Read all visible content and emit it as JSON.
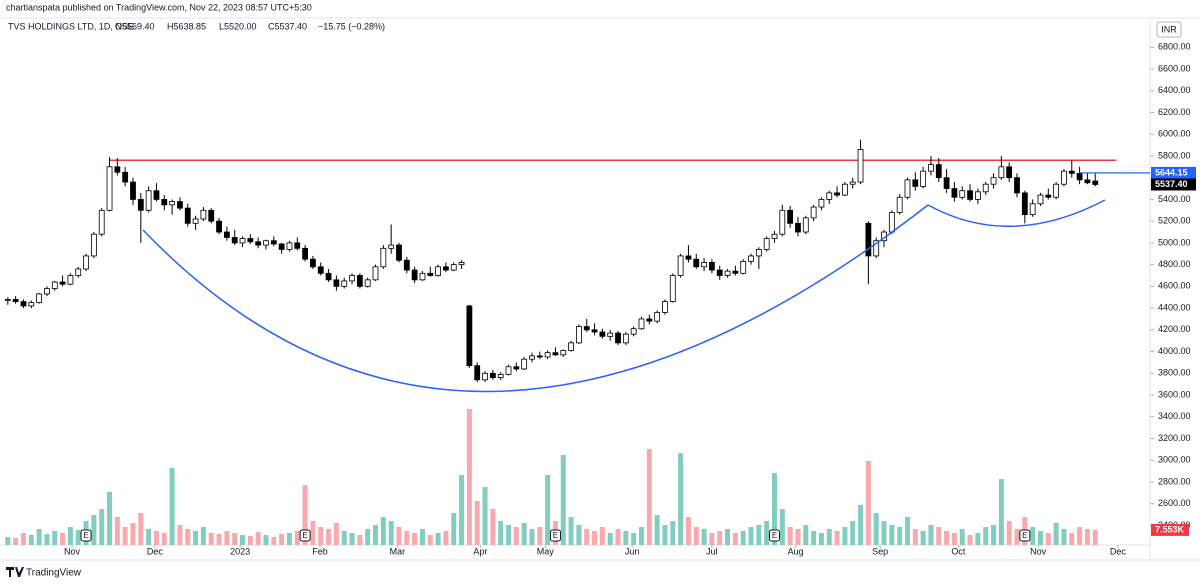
{
  "header": "chartianspata published on TradingView.com, Nov 22, 2023 08:57 UTC+5:30",
  "footer": "TradingView",
  "chart_data": {
    "type": "candlestick",
    "legend": {
      "symbol": "TVS HOLDINGS LTD, 1D, NSE",
      "open": "O5569.40",
      "high": "H5638.85",
      "low": "L5520.00",
      "close": "C5537.40",
      "change": "−15.75 (−0.28%)"
    },
    "currency": "INR",
    "up_color": "#ffffff",
    "down_color": "#000000",
    "wick_color": "#000000",
    "xlim": [
      -1,
      146
    ],
    "xticks": [
      {
        "value": 8.2,
        "label": "Nov"
      },
      {
        "value": 18.8,
        "label": "Dec"
      },
      {
        "value": 29.7,
        "label": "2023"
      },
      {
        "value": 39.9,
        "label": "Feb"
      },
      {
        "value": 49.8,
        "label": "Mar"
      },
      {
        "value": 60.4,
        "label": "Apr"
      },
      {
        "value": 68.7,
        "label": "May"
      },
      {
        "value": 79.8,
        "label": "Jun"
      },
      {
        "value": 90,
        "label": "Jul"
      },
      {
        "value": 100.7,
        "label": "Aug"
      },
      {
        "value": 111.5,
        "label": "Sep"
      },
      {
        "value": 121.5,
        "label": "Oct"
      },
      {
        "value": 131.7,
        "label": "Nov"
      },
      {
        "value": 141.9,
        "label": "Dec"
      }
    ],
    "ylim": [
      2220,
      7005
    ],
    "yticks": [
      {
        "value": 2400,
        "label": "2400.00"
      },
      {
        "value": 2600,
        "label": "2600.00"
      },
      {
        "value": 2800,
        "label": "2800.00"
      },
      {
        "value": 3000,
        "label": "3000.00"
      },
      {
        "value": 3200,
        "label": "3200.00"
      },
      {
        "value": 3400,
        "label": "3400.00"
      },
      {
        "value": 3600,
        "label": "3600.00"
      },
      {
        "value": 3800,
        "label": "3800.00"
      },
      {
        "value": 4000,
        "label": "4000.00"
      },
      {
        "value": 4200,
        "label": "4200.00"
      },
      {
        "value": 4400,
        "label": "4400.00"
      },
      {
        "value": 4600,
        "label": "4600.00"
      },
      {
        "value": 4800,
        "label": "4800.00"
      },
      {
        "value": 5000,
        "label": "5000.00"
      },
      {
        "value": 5200,
        "label": "5200.00"
      },
      {
        "value": 5400,
        "label": "5400.00"
      },
      {
        "value": 5600,
        "label": "5600.00"
      },
      {
        "value": 5800,
        "label": "5800.00"
      },
      {
        "value": 6000,
        "label": "6000.00"
      },
      {
        "value": 6200,
        "label": "6200.00"
      },
      {
        "value": 6400,
        "label": "6400.00"
      },
      {
        "value": 6600,
        "label": "6600.00"
      },
      {
        "value": 6800,
        "label": "6800.00"
      }
    ],
    "candles": [
      [
        4470,
        4500,
        4430,
        4480
      ],
      [
        4480,
        4510,
        4440,
        4460
      ],
      [
        4460,
        4480,
        4400,
        4420
      ],
      [
        4420,
        4470,
        4400,
        4450
      ],
      [
        4450,
        4540,
        4440,
        4530
      ],
      [
        4530,
        4600,
        4510,
        4580
      ],
      [
        4580,
        4650,
        4560,
        4640
      ],
      [
        4640,
        4700,
        4600,
        4620
      ],
      [
        4620,
        4720,
        4610,
        4700
      ],
      [
        4700,
        4780,
        4680,
        4760
      ],
      [
        4760,
        4900,
        4740,
        4880
      ],
      [
        4880,
        5100,
        4860,
        5080
      ],
      [
        5080,
        5320,
        5060,
        5300
      ],
      [
        5300,
        5790,
        5290,
        5700
      ],
      [
        5700,
        5780,
        5620,
        5650
      ],
      [
        5650,
        5700,
        5520,
        5560
      ],
      [
        5560,
        5600,
        5350,
        5400
      ],
      [
        5400,
        5460,
        5000,
        5300
      ],
      [
        5300,
        5520,
        5280,
        5480
      ],
      [
        5480,
        5550,
        5380,
        5400
      ],
      [
        5400,
        5440,
        5300,
        5350
      ],
      [
        5350,
        5400,
        5260,
        5380
      ],
      [
        5380,
        5420,
        5300,
        5320
      ],
      [
        5320,
        5360,
        5150,
        5180
      ],
      [
        5180,
        5250,
        5120,
        5220
      ],
      [
        5220,
        5330,
        5200,
        5300
      ],
      [
        5300,
        5320,
        5180,
        5200
      ],
      [
        5200,
        5230,
        5080,
        5100
      ],
      [
        5100,
        5150,
        5020,
        5050
      ],
      [
        5050,
        5120,
        4980,
        5000
      ],
      [
        5000,
        5060,
        4960,
        5040
      ],
      [
        5040,
        5080,
        4990,
        5010
      ],
      [
        5010,
        5050,
        4950,
        4980
      ],
      [
        4980,
        5030,
        4940,
        5020
      ],
      [
        5020,
        5060,
        4970,
        4990
      ],
      [
        4990,
        5000,
        4900,
        4940
      ],
      [
        4940,
        5020,
        4920,
        5000
      ],
      [
        5000,
        5050,
        4930,
        4950
      ],
      [
        4950,
        4980,
        4830,
        4850
      ],
      [
        4850,
        4880,
        4760,
        4780
      ],
      [
        4780,
        4820,
        4700,
        4720
      ],
      [
        4720,
        4760,
        4640,
        4660
      ],
      [
        4660,
        4700,
        4560,
        4600
      ],
      [
        4600,
        4680,
        4580,
        4650
      ],
      [
        4650,
        4720,
        4620,
        4700
      ],
      [
        4700,
        4720,
        4580,
        4600
      ],
      [
        4600,
        4680,
        4590,
        4660
      ],
      [
        4660,
        4800,
        4650,
        4780
      ],
      [
        4780,
        4980,
        4760,
        4950
      ],
      [
        4950,
        5170,
        4900,
        4980
      ],
      [
        4980,
        5000,
        4820,
        4840
      ],
      [
        4840,
        4870,
        4720,
        4750
      ],
      [
        4750,
        4780,
        4630,
        4660
      ],
      [
        4660,
        4740,
        4650,
        4720
      ],
      [
        4720,
        4780,
        4690,
        4700
      ],
      [
        4700,
        4800,
        4690,
        4780
      ],
      [
        4780,
        4820,
        4730,
        4750
      ],
      [
        4750,
        4820,
        4740,
        4800
      ],
      [
        4800,
        4840,
        4760,
        4820
      ],
      [
        4420,
        4430,
        3850,
        3870
      ],
      [
        3870,
        3900,
        3720,
        3740
      ],
      [
        3740,
        3820,
        3720,
        3800
      ],
      [
        3800,
        3830,
        3740,
        3760
      ],
      [
        3760,
        3810,
        3740,
        3790
      ],
      [
        3790,
        3880,
        3780,
        3860
      ],
      [
        3860,
        3900,
        3820,
        3840
      ],
      [
        3840,
        3950,
        3830,
        3930
      ],
      [
        3930,
        3990,
        3900,
        3960
      ],
      [
        3960,
        4000,
        3930,
        3950
      ],
      [
        3950,
        4010,
        3930,
        3990
      ],
      [
        3990,
        4040,
        3960,
        3970
      ],
      [
        3970,
        4020,
        3950,
        4010
      ],
      [
        4010,
        4100,
        4000,
        4080
      ],
      [
        4080,
        4250,
        4070,
        4230
      ],
      [
        4230,
        4300,
        4180,
        4200
      ],
      [
        4200,
        4260,
        4150,
        4180
      ],
      [
        4180,
        4210,
        4120,
        4140
      ],
      [
        4140,
        4200,
        4100,
        4170
      ],
      [
        4170,
        4190,
        4060,
        4080
      ],
      [
        4080,
        4180,
        4060,
        4160
      ],
      [
        4160,
        4230,
        4140,
        4210
      ],
      [
        4210,
        4320,
        4200,
        4300
      ],
      [
        4300,
        4340,
        4250,
        4280
      ],
      [
        4280,
        4380,
        4260,
        4360
      ],
      [
        4360,
        4480,
        4340,
        4460
      ],
      [
        4460,
        4720,
        4450,
        4700
      ],
      [
        4700,
        4900,
        4680,
        4880
      ],
      [
        4880,
        4980,
        4820,
        4850
      ],
      [
        4850,
        4900,
        4760,
        4780
      ],
      [
        4780,
        4860,
        4740,
        4820
      ],
      [
        4820,
        4850,
        4720,
        4750
      ],
      [
        4750,
        4790,
        4660,
        4700
      ],
      [
        4700,
        4760,
        4680,
        4740
      ],
      [
        4740,
        4790,
        4700,
        4720
      ],
      [
        4720,
        4850,
        4710,
        4830
      ],
      [
        4830,
        4900,
        4800,
        4880
      ],
      [
        4880,
        4960,
        4760,
        4940
      ],
      [
        4940,
        5060,
        4920,
        5040
      ],
      [
        5040,
        5110,
        5000,
        5080
      ],
      [
        5080,
        5350,
        5060,
        5300
      ],
      [
        5300,
        5340,
        5140,
        5180
      ],
      [
        5180,
        5240,
        5060,
        5100
      ],
      [
        5100,
        5250,
        5080,
        5230
      ],
      [
        5230,
        5350,
        5200,
        5330
      ],
      [
        5330,
        5420,
        5300,
        5400
      ],
      [
        5400,
        5480,
        5360,
        5460
      ],
      [
        5460,
        5520,
        5420,
        5440
      ],
      [
        5440,
        5560,
        5430,
        5540
      ],
      [
        5540,
        5600,
        5500,
        5560
      ],
      [
        5560,
        5950,
        5540,
        5860
      ],
      [
        5180,
        5200,
        4620,
        4880
      ],
      [
        4880,
        5050,
        4860,
        5020
      ],
      [
        5020,
        5120,
        4960,
        5100
      ],
      [
        5100,
        5300,
        5080,
        5280
      ],
      [
        5280,
        5450,
        5260,
        5420
      ],
      [
        5420,
        5600,
        5400,
        5580
      ],
      [
        5580,
        5650,
        5480,
        5520
      ],
      [
        5520,
        5700,
        5500,
        5660
      ],
      [
        5660,
        5800,
        5620,
        5720
      ],
      [
        5720,
        5780,
        5560,
        5600
      ],
      [
        5600,
        5680,
        5460,
        5500
      ],
      [
        5500,
        5560,
        5380,
        5420
      ],
      [
        5420,
        5520,
        5400,
        5480
      ],
      [
        5480,
        5540,
        5380,
        5400
      ],
      [
        5400,
        5500,
        5360,
        5470
      ],
      [
        5470,
        5560,
        5440,
        5540
      ],
      [
        5540,
        5640,
        5500,
        5600
      ],
      [
        5600,
        5800,
        5580,
        5700
      ],
      [
        5700,
        5740,
        5560,
        5600
      ],
      [
        5600,
        5640,
        5420,
        5460
      ],
      [
        5460,
        5480,
        5180,
        5260
      ],
      [
        5260,
        5400,
        5240,
        5360
      ],
      [
        5360,
        5460,
        5340,
        5440
      ],
      [
        5440,
        5500,
        5400,
        5420
      ],
      [
        5420,
        5560,
        5400,
        5540
      ],
      [
        5540,
        5680,
        5520,
        5660
      ],
      [
        5660,
        5760,
        5600,
        5640
      ],
      [
        5640,
        5700,
        5540,
        5580
      ],
      [
        5580,
        5640,
        5540,
        5553.15
      ],
      [
        5569.4,
        5638.85,
        5520,
        5537.4
      ]
    ],
    "last_price_label": "5537.40",
    "resistance": {
      "value": 5760,
      "color": "#f23645",
      "start_index": 13
    },
    "price_line": {
      "value": 5644.15,
      "label": "5644.15",
      "color": "#2962ff",
      "start_index": 137
    },
    "earnings": [
      {
        "index": 10,
        "label": "E"
      },
      {
        "index": 38,
        "label": "E"
      },
      {
        "index": 70,
        "label": "E"
      },
      {
        "index": 98,
        "label": "E"
      },
      {
        "index": 130,
        "label": "E"
      }
    ],
    "volume": {
      "ylim": [
        0,
        75000
      ],
      "up_color": "#82cdbf",
      "down_color": "#f7a9ad",
      "last_label": "7.553K",
      "label_color": "#f23645",
      "values": [
        4000,
        3500,
        6000,
        5000,
        8000,
        5500,
        7000,
        6000,
        9000,
        7500,
        12000,
        15000,
        18000,
        26500,
        14000,
        9000,
        11000,
        16000,
        8000,
        7000,
        6000,
        38500,
        10000,
        8000,
        7000,
        9000,
        6000,
        5500,
        7000,
        6000,
        5000,
        4500,
        6500,
        5000,
        4000,
        5500,
        6000,
        7000,
        30000,
        12000,
        9000,
        8000,
        11000,
        7000,
        6000,
        5000,
        8000,
        10000,
        14000,
        12000,
        9000,
        7000,
        6000,
        8000,
        5000,
        6000,
        7000,
        16000,
        35000,
        68000,
        22000,
        29000,
        18000,
        12000,
        10000,
        9000,
        11000,
        8000,
        9000,
        35000,
        12000,
        45000,
        14000,
        10000,
        8000,
        7000,
        9000,
        6000,
        8000,
        7000,
        6000,
        9000,
        48000,
        15000,
        10000,
        12000,
        46000,
        14000,
        9000,
        8000,
        6000,
        7000,
        8000,
        6000,
        7000,
        9000,
        10000,
        12000,
        36000,
        18000,
        9000,
        8000,
        10000,
        7000,
        6000,
        8000,
        7000,
        9000,
        12000,
        20000,
        42000,
        16000,
        12000,
        10000,
        9000,
        14000,
        8000,
        7000,
        10000,
        9000,
        7000,
        6000,
        8000,
        5000,
        6000,
        9000,
        10000,
        33000,
        12000,
        8000,
        14000,
        9000,
        7000,
        6000,
        11000,
        8000,
        6000,
        9000,
        8000,
        7553
      ]
    }
  }
}
